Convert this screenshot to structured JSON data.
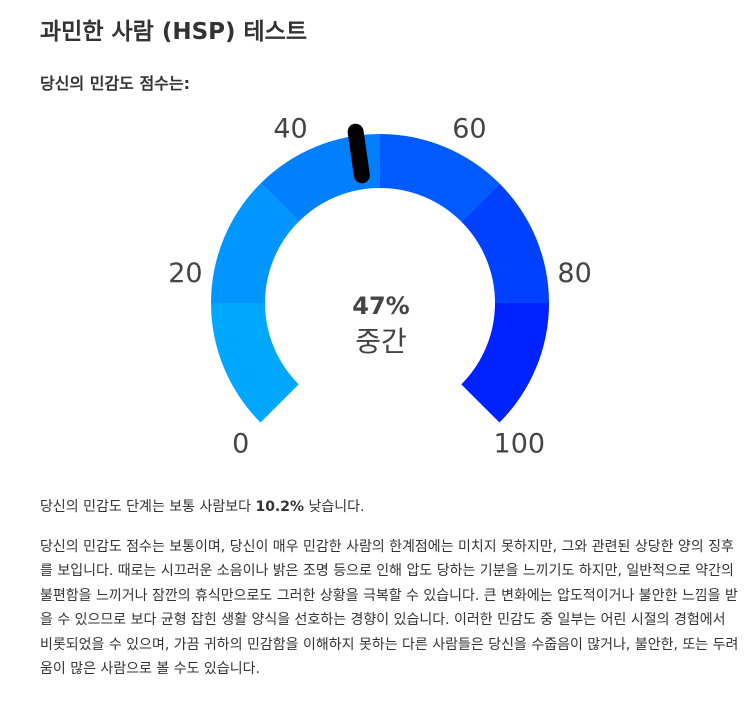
{
  "page": {
    "title": "과민한 사람 (HSP) 테스트",
    "subtitle": "당신의 민감도 점수는:"
  },
  "gauge": {
    "value_label": "47%",
    "level_label": "중간",
    "value": 47,
    "min": 0,
    "max": 100,
    "ticks": [
      "0",
      "20",
      "40",
      "60",
      "80",
      "100"
    ],
    "band_colors": [
      "#00A7FF",
      "#0095FF",
      "#0080FF",
      "#005BFF",
      "#0040FF",
      "#0022FF"
    ],
    "needle_color": "#000000"
  },
  "summary": {
    "prefix": "당신의 민감도 단계는 보통 사람보다 ",
    "percent": "10.2%",
    "suffix": " 낮습니다."
  },
  "description": {
    "text": "당신의 민감도 점수는 보통이며, 당신이 매우 민감한 사람의 한계점에는 미치지 못하지만, 그와 관련된 상당한 양의 징후를 보입니다. 때로는 시끄러운 소음이나 밝은 조명 등으로 인해 압도 당하는 기분을 느끼기도 하지만, 일반적으로 약간의 불편함을 느끼거나 잠깐의 휴식만으로도 그러한 상황을 극복할 수 있습니다. 큰 변화에는 압도적이거나 불안한 느낌을 받을 수 있으므로 보다 균형 잡힌 생활 양식을 선호하는 경향이 있습니다. 이러한 민감도 중 일부는 어린 시절의 경험에서 비롯되었을 수 있으며, 가끔 귀하의 민감함을 이해하지 못하는 다른 사람들은 당신을 수줍음이 많거나, 불안한, 또는 두려움이 많은 사람으로 볼 수도 있습니다."
  }
}
